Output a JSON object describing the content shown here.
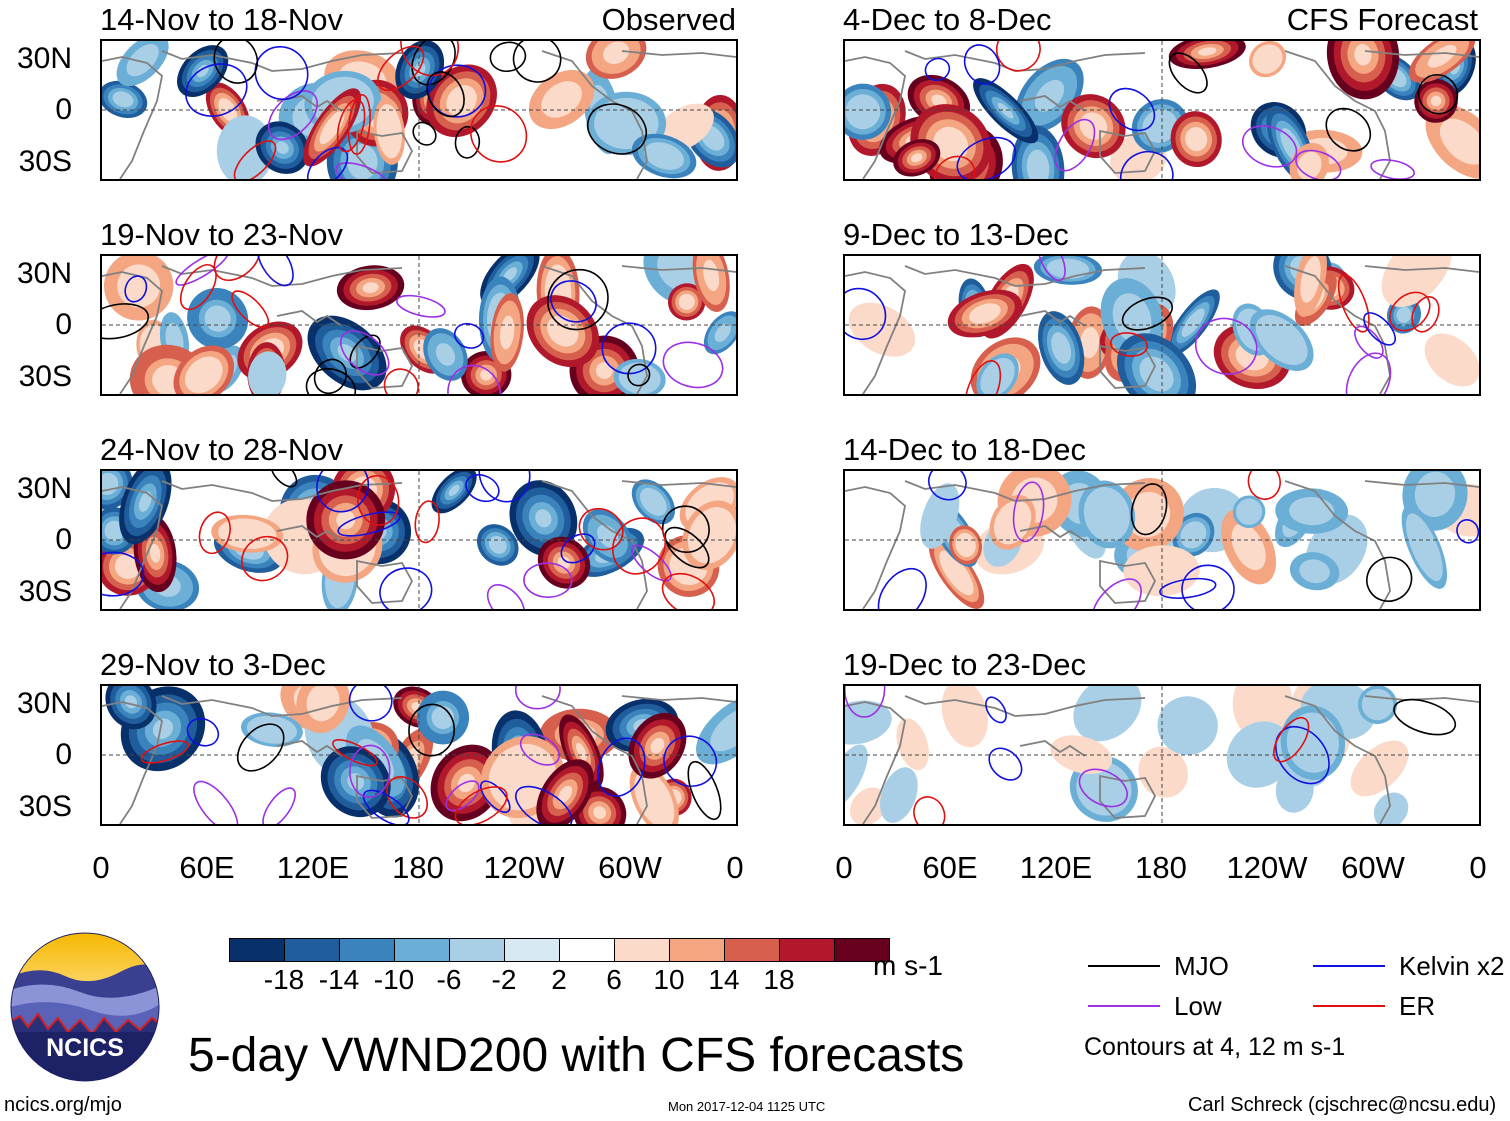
{
  "left_header": "Observed",
  "right_header": "CFS Forecast",
  "panels_left": [
    {
      "title": "14-Nov to 18-Nov"
    },
    {
      "title": "19-Nov to 23-Nov"
    },
    {
      "title": "24-Nov to 28-Nov"
    },
    {
      "title": "29-Nov to 3-Dec"
    }
  ],
  "panels_right": [
    {
      "title": "4-Dec to 8-Dec"
    },
    {
      "title": "9-Dec to 13-Dec"
    },
    {
      "title": "14-Dec to 18-Dec"
    },
    {
      "title": "19-Dec to 23-Dec"
    }
  ],
  "chart_data": {
    "type": "heatmap",
    "title": "5-day VWND200 with CFS forecasts",
    "variable": "VWND200",
    "y_ticks": [
      "30N",
      "0",
      "30S"
    ],
    "x_ticks": [
      "0",
      "60E",
      "120E",
      "180",
      "120W",
      "60W",
      "0"
    ],
    "colorbar": {
      "units": "m s-1",
      "tick_labels": [
        "-18",
        "-14",
        "-10",
        "-6",
        "-2",
        "2",
        "6",
        "10",
        "14",
        "18"
      ],
      "colors": [
        "#08306b",
        "#1f5d9c",
        "#3a83bd",
        "#6baed6",
        "#a9cfe6",
        "#d9e9f4",
        "#ffffff",
        "#fcdac9",
        "#f4a582",
        "#d6604d",
        "#b2182b",
        "#67001f"
      ]
    },
    "legend": [
      {
        "label": "MJO",
        "color": "#000000"
      },
      {
        "label": "Kelvin x2",
        "color": "#1010e0"
      },
      {
        "label": "Low",
        "color": "#9b30e6"
      },
      {
        "label": "ER",
        "color": "#e01010"
      }
    ],
    "contour_note": "Contours at 4, 12 m s-1"
  },
  "footer": {
    "logo_text": "NCICS",
    "url": "ncics.org/mjo",
    "timestamp": "Mon 2017-12-04 1125 UTC",
    "credit": "Carl Schreck (cjschrec@ncsu.edu)"
  }
}
